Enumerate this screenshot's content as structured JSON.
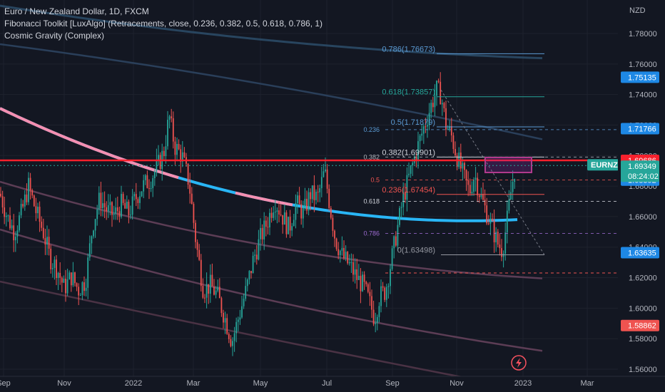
{
  "legend": {
    "title": "Euro / New Zealand Dollar, 1D, FXCM",
    "indicator1": "Fibonacci Toolkit [LuxAlgo] (Retracements, close, 0.236, 0.382, 0.5, 0.618, 0.786, 1)",
    "indicator2": "Cosmic Gravity (Complex)"
  },
  "currency": "NZD",
  "colors": {
    "background": "#131722",
    "up": "#26a69a",
    "down": "#ef5350",
    "resistance": "#f7212d",
    "cosmic_blue": "#29b6f6",
    "cosmic_pink": "#f48fb1",
    "purple_band": "#5c3d55"
  },
  "chart_data": {
    "type": "candlestick",
    "symbol": "EURNZD",
    "x_ticks": [
      "Sep",
      "Nov",
      "2022",
      "Mar",
      "May",
      "Jul",
      "Sep",
      "Nov",
      "2023",
      "Mar"
    ],
    "y_ticks": [
      "1.78000",
      "1.76000",
      "1.74000",
      "1.72000",
      "1.70000",
      "1.68000",
      "1.66000",
      "1.64000",
      "1.62000",
      "1.60000",
      "1.58000",
      "1.56000"
    ],
    "ylim": [
      1.557,
      1.8
    ],
    "price_badges": [
      {
        "label": "1.75135",
        "value": 1.75135,
        "color": "#1e88e5"
      },
      {
        "label": "1.71766",
        "value": 1.71766,
        "color": "#1e88e5"
      },
      {
        "label": "1.69686",
        "value": 1.69686,
        "color": "#f7212d"
      },
      {
        "label": "1.68392",
        "value": 1.68392,
        "color": "#1e88e5"
      },
      {
        "label": "1.63635",
        "value": 1.63635,
        "color": "#1e88e5"
      },
      {
        "label": "1.58862",
        "value": 1.58862,
        "color": "#ef5350"
      }
    ],
    "current": {
      "symbol": "EURNZD",
      "price": "1.69349",
      "countdown": "08:24:02",
      "value": 1.69349
    },
    "fib_levels": [
      {
        "label": "0.786(1.76673)",
        "value": 1.76673
      },
      {
        "label": "0.618(1.73857)",
        "value": 1.73857
      },
      {
        "label": "0.5(1.71879)",
        "value": 1.71879
      },
      {
        "label": "0.382(1.69901)",
        "value": 1.69901
      },
      {
        "label": "0.236(1.67454)",
        "value": 1.67454
      },
      {
        "label": "0(1.63498)",
        "value": 1.63498
      }
    ],
    "fib_small_levels": [
      {
        "label": "0.236",
        "value": 1.717
      },
      {
        "label": "0.382",
        "value": 1.699
      },
      {
        "label": "0.5",
        "value": 1.684
      },
      {
        "label": "0.618",
        "value": 1.67
      },
      {
        "label": "0.786",
        "value": 1.649
      }
    ],
    "resistance_level": 1.69686,
    "price_path": [
      [
        0,
        1.675
      ],
      [
        10,
        1.66
      ],
      [
        20,
        1.65
      ],
      [
        30,
        1.662
      ],
      [
        40,
        1.68
      ],
      [
        50,
        1.664
      ],
      [
        60,
        1.651
      ],
      [
        70,
        1.633
      ],
      [
        80,
        1.626
      ],
      [
        90,
        1.613
      ],
      [
        100,
        1.621
      ],
      [
        110,
        1.612
      ],
      [
        120,
        1.618
      ],
      [
        130,
        1.655
      ],
      [
        140,
        1.672
      ],
      [
        150,
        1.664
      ],
      [
        160,
        1.661
      ],
      [
        170,
        1.668
      ],
      [
        180,
        1.662
      ],
      [
        190,
        1.672
      ],
      [
        200,
        1.68
      ],
      [
        210,
        1.684
      ],
      [
        220,
        1.692
      ],
      [
        230,
        1.703
      ],
      [
        237,
        1.726
      ],
      [
        245,
        1.706
      ],
      [
        255,
        1.7
      ],
      [
        265,
        1.682
      ],
      [
        275,
        1.642
      ],
      [
        285,
        1.612
      ],
      [
        295,
        1.615
      ],
      [
        305,
        1.608
      ],
      [
        315,
        1.594
      ],
      [
        325,
        1.578
      ],
      [
        335,
        1.595
      ],
      [
        345,
        1.612
      ],
      [
        355,
        1.632
      ],
      [
        365,
        1.646
      ],
      [
        375,
        1.657
      ],
      [
        385,
        1.671
      ],
      [
        395,
        1.661
      ],
      [
        405,
        1.652
      ],
      [
        415,
        1.669
      ],
      [
        425,
        1.662
      ],
      [
        435,
        1.675
      ],
      [
        445,
        1.672
      ],
      [
        455,
        1.69
      ],
      [
        462,
        1.668
      ],
      [
        470,
        1.645
      ],
      [
        480,
        1.634
      ],
      [
        490,
        1.628
      ],
      [
        500,
        1.62
      ],
      [
        510,
        1.614
      ],
      [
        520,
        1.601
      ],
      [
        525,
        1.593
      ],
      [
        532,
        1.608
      ],
      [
        540,
        1.611
      ],
      [
        548,
        1.63
      ],
      [
        556,
        1.65
      ],
      [
        565,
        1.672
      ],
      [
        575,
        1.689
      ],
      [
        585,
        1.705
      ],
      [
        595,
        1.72
      ],
      [
        605,
        1.734
      ],
      [
        612,
        1.743
      ],
      [
        618,
        1.74
      ],
      [
        625,
        1.72
      ],
      [
        632,
        1.714
      ],
      [
        640,
        1.7
      ],
      [
        650,
        1.686
      ],
      [
        658,
        1.676
      ],
      [
        665,
        1.688
      ],
      [
        672,
        1.676
      ],
      [
        680,
        1.665
      ],
      [
        690,
        1.652
      ],
      [
        698,
        1.642
      ],
      [
        704,
        1.638
      ],
      [
        710,
        1.655
      ],
      [
        716,
        1.676
      ],
      [
        722,
        1.693
      ]
    ]
  }
}
